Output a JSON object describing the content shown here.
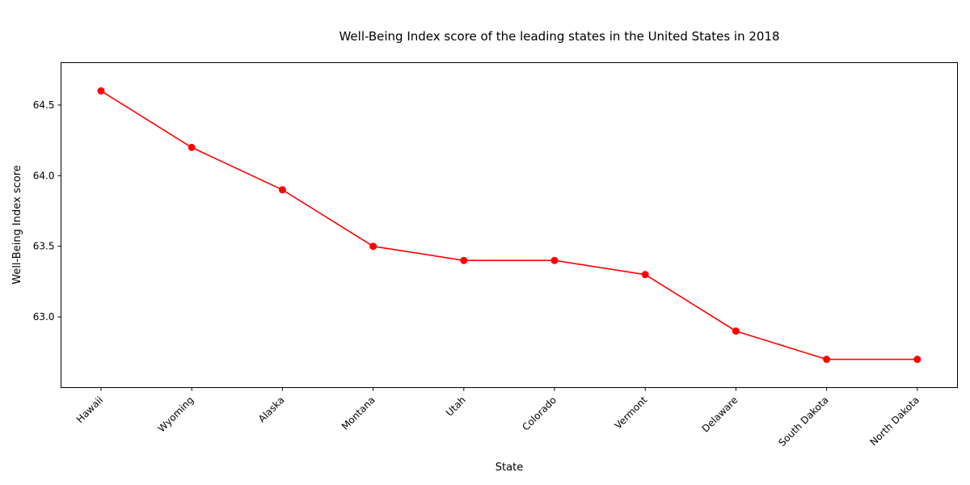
{
  "chart_data": {
    "type": "line",
    "title": "Well-Being Index score of the leading states in the United States in 2018",
    "xlabel": "State",
    "ylabel": "Well-Being Index score",
    "categories": [
      "Hawaii",
      "Wyoming",
      "Alaska",
      "Montana",
      "Utah",
      "Colorado",
      "Vermont",
      "Delaware",
      "South Dakota",
      "North Dakota"
    ],
    "series": [
      {
        "values": [
          64.6,
          64.2,
          63.9,
          63.5,
          63.4,
          63.4,
          63.3,
          62.9,
          62.7,
          62.7
        ]
      }
    ],
    "ylim": [
      62.5,
      64.8
    ],
    "yticks": [
      "63.0",
      "63.5",
      "64.0",
      "64.5"
    ],
    "grid": false,
    "line_color": "#ff0000",
    "marker_color": "#ff0000"
  }
}
